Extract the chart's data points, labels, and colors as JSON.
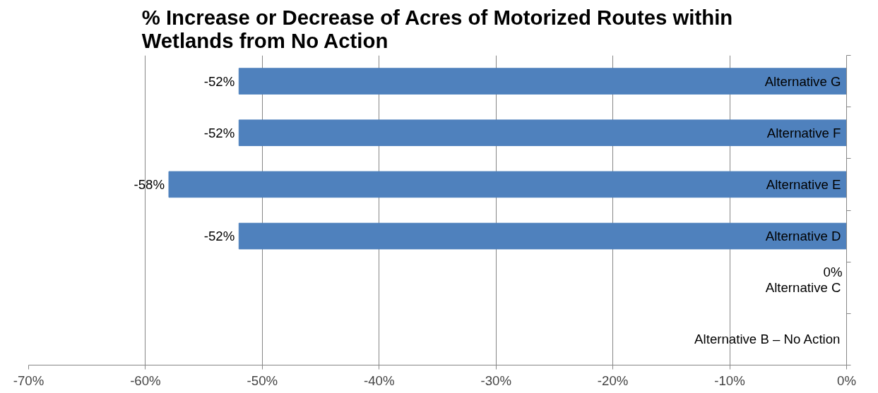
{
  "chart_data": {
    "type": "bar",
    "orientation": "horizontal",
    "title": "% Increase or Decrease of Acres of Motorized Routes within\nWetlands from No Action",
    "categories": [
      "Alternative G",
      "Alternative F",
      "Alternative E",
      "Alternative D",
      "Alternative C",
      "Alternative B – No Action"
    ],
    "values": [
      -52,
      -52,
      -58,
      -52,
      0,
      null
    ],
    "value_labels": [
      "-52%",
      "-52%",
      "-58%",
      "-52%",
      "0%",
      null
    ],
    "color": "#4f81bd",
    "xlim": [
      -70,
      0
    ],
    "xticks": [
      {
        "value": -70,
        "label": "-70%"
      },
      {
        "value": -60,
        "label": "-60%"
      },
      {
        "value": -50,
        "label": "-50%"
      },
      {
        "value": -40,
        "label": "-40%"
      },
      {
        "value": -30,
        "label": "-30%"
      },
      {
        "value": -20,
        "label": "-20%"
      },
      {
        "value": -10,
        "label": "-10%"
      },
      {
        "value": 0,
        "label": "0%"
      }
    ],
    "grid": "x"
  }
}
